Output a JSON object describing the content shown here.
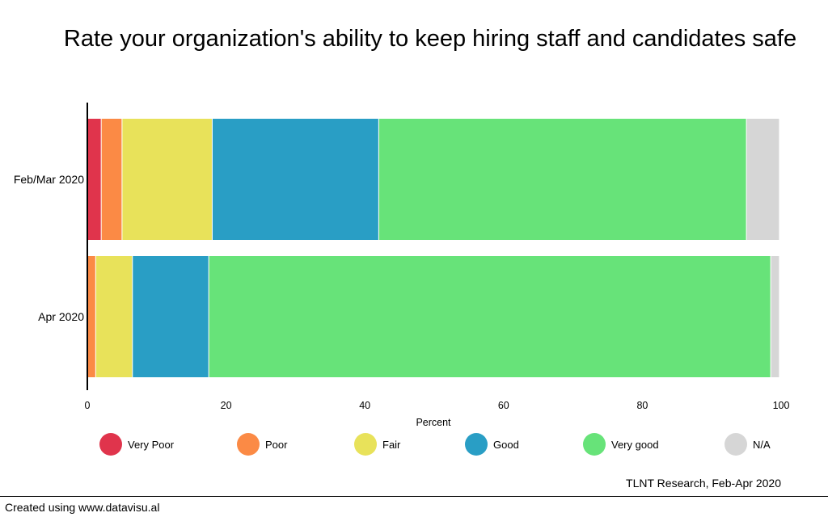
{
  "chart_data": {
    "type": "bar",
    "orientation": "horizontal",
    "stacked": true,
    "title": "Rate your organization's ability to keep hiring staff and candidates safe",
    "xlabel": "Percent",
    "ylabel": "",
    "xlim": [
      0,
      100
    ],
    "xticks": [
      "0",
      "20",
      "40",
      "60",
      "80",
      "100"
    ],
    "categories": [
      "Feb/Mar 2020",
      "Apr 2020"
    ],
    "series": [
      {
        "name": "Very Poor",
        "color": "#e0344c",
        "values": [
          2,
          0
        ]
      },
      {
        "name": "Poor",
        "color": "#fb8a45",
        "values": [
          3,
          1.2
        ]
      },
      {
        "name": "Fair",
        "color": "#e8e25a",
        "values": [
          13,
          5.3
        ]
      },
      {
        "name": "Good",
        "color": "#299ec5",
        "values": [
          24,
          11
        ]
      },
      {
        "name": "Very good",
        "color": "#67e379",
        "values": [
          53,
          81
        ]
      },
      {
        "name": "N/A",
        "color": "#d6d6d6",
        "values": [
          4.7,
          1.2
        ]
      }
    ],
    "legend_position": "bottom",
    "grid": false
  },
  "source": "TLNT Research, Feb-Apr 2020",
  "footer": "Created using www.datavisu.al"
}
